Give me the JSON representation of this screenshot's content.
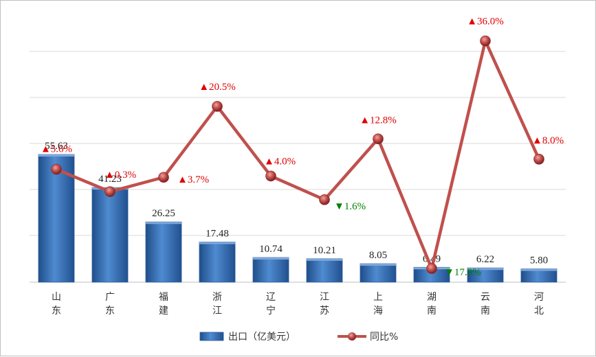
{
  "chart_data": {
    "type": "bar",
    "categories": [
      "山东",
      "广东",
      "福建",
      "浙江",
      "辽宁",
      "江苏",
      "上海",
      "湖南",
      "云南",
      "河北"
    ],
    "series": [
      {
        "name": "出口（亿美元）",
        "type": "bar",
        "values": [
          55.63,
          41.23,
          26.25,
          17.48,
          10.74,
          10.21,
          8.05,
          6.49,
          6.22,
          5.8
        ]
      },
      {
        "name": "同比%",
        "type": "line",
        "values": [
          5.6,
          0.3,
          3.7,
          20.5,
          4.0,
          -1.6,
          12.8,
          -17.9,
          36.0,
          8.0
        ]
      }
    ],
    "bar_labels": [
      "55.63",
      "41.23",
      "26.25",
      "17.48",
      "10.74",
      "10.21",
      "8.05",
      "6.49",
      "6.22",
      "5.80"
    ],
    "line_labels": [
      "▲5.6%",
      "▲0.3%",
      "▲3.7%",
      "▲20.5%",
      "▲4.0%",
      "▼1.6%",
      "▲12.8%",
      "▼17.9%",
      "▲36.0%",
      "▲8.0%"
    ],
    "legend_placement": "bottom",
    "grid": true,
    "colors": {
      "bar": "#3f78c0",
      "line": "#c0504d",
      "up": "#e00000",
      "down": "#008000"
    }
  }
}
